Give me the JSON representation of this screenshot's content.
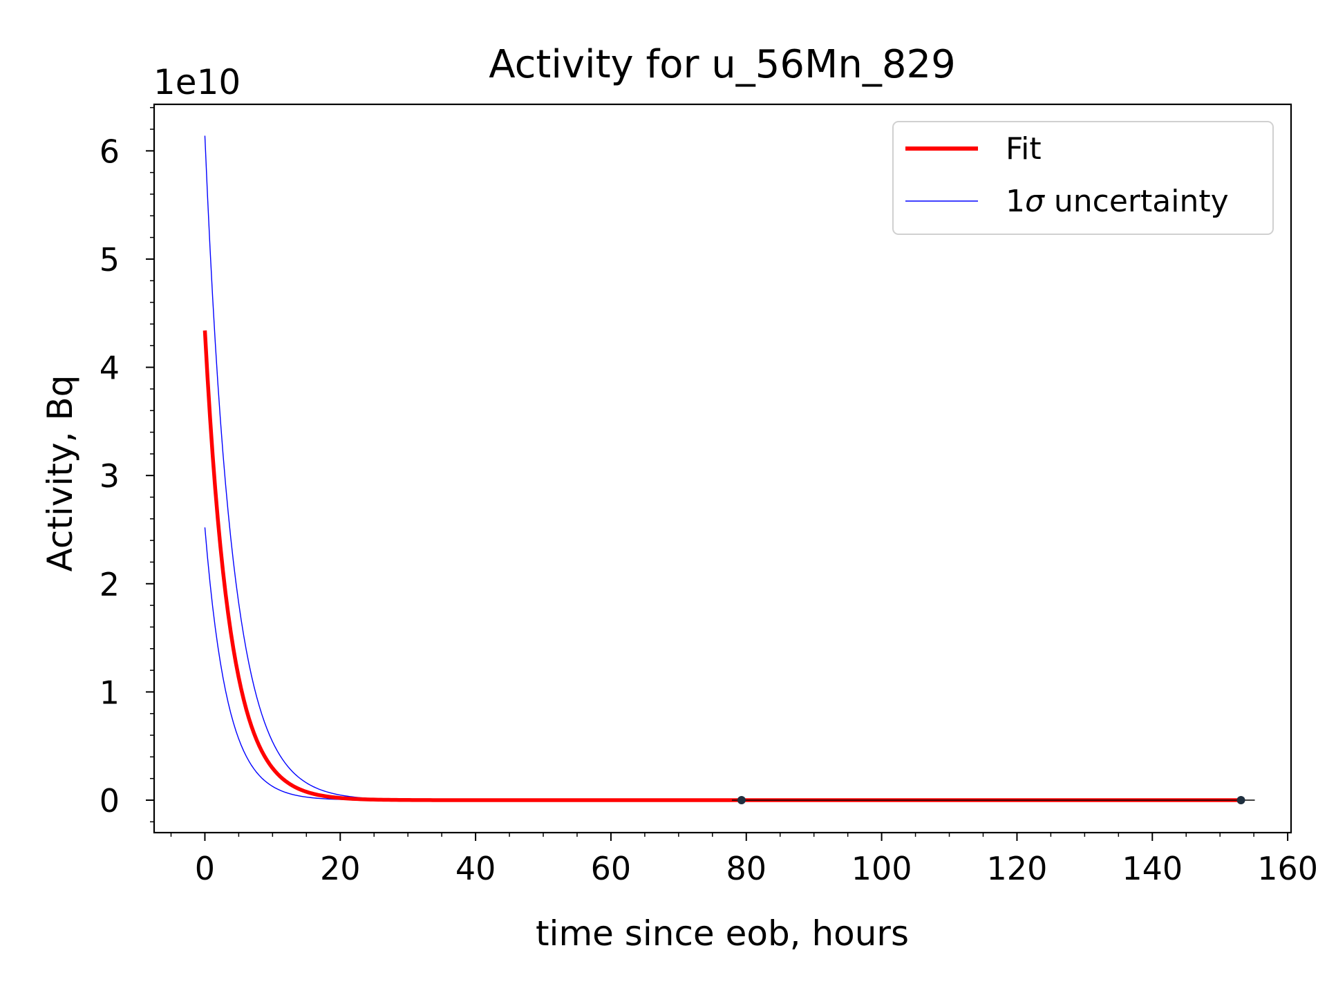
{
  "chart_data": {
    "type": "line",
    "title": "Activity for u_56Mn_829",
    "xlabel": "time since eob, hours",
    "ylabel": "Activity, Bq",
    "y_offset_label": "1e10",
    "y_scale": 10000000000,
    "xlim": [
      -7.5,
      160.5
    ],
    "ylim": [
      -0.3,
      6.43
    ],
    "x_ticks": [
      0,
      20,
      40,
      60,
      80,
      100,
      120,
      140,
      160
    ],
    "x_tick_labels": [
      "0",
      "20",
      "40",
      "60",
      "80",
      "100",
      "120",
      "140",
      "160"
    ],
    "y_ticks": [
      0,
      1,
      2,
      3,
      4,
      5,
      6
    ],
    "y_tick_labels": [
      "0",
      "1",
      "2",
      "3",
      "4",
      "5",
      "6"
    ],
    "grid": false,
    "legend": {
      "placement": "top-right",
      "entries": [
        {
          "label": "Fit",
          "color": "#ff0000"
        },
        {
          "label_prefix": "1",
          "label_symbol": "σ",
          "label_suffix": " uncertainty",
          "color": "#0000ff"
        }
      ]
    },
    "fit": {
      "name": "Fit",
      "color": "#ff0000",
      "A0": 4.34,
      "half_life_hours": 2.58,
      "x_range": [
        0,
        153
      ]
    },
    "uncertainty": [
      {
        "name": "upper",
        "color": "#0000ff",
        "A0": 6.14,
        "half_life_hours": 2.85,
        "x_range": [
          0,
          153
        ]
      },
      {
        "name": "lower",
        "color": "#0000ff",
        "A0": 2.52,
        "half_life_hours": 2.32,
        "x_range": [
          0,
          153
        ]
      }
    ],
    "data_points": {
      "x": [
        79.3,
        153.1
      ],
      "y": [
        0.0,
        0.0
      ],
      "color": "#1f2f3f"
    }
  }
}
